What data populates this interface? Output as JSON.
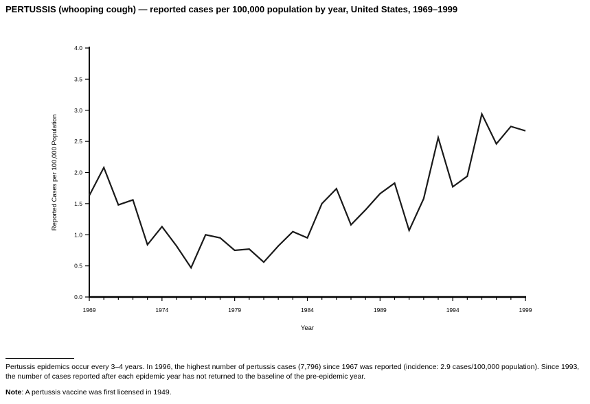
{
  "page": {
    "title": "PERTUSSIS (whooping cough) — reported cases per 100,000 population by year, United States, 1969–1999"
  },
  "chart_data": {
    "type": "line",
    "title": "PERTUSSIS (whooping cough) — reported cases per 100,000 population by year, United States, 1969–1999",
    "xlabel": "Year",
    "ylabel": "Reported Cases per 100,000 Population",
    "ylim": [
      0.0,
      4.0
    ],
    "ytick_step": 0.5,
    "xticks_labeled": [
      1969,
      1974,
      1979,
      1984,
      1989,
      1994,
      1999
    ],
    "grid": false,
    "legend": false,
    "line_color": "#1a1a1a",
    "x": [
      1969,
      1970,
      1971,
      1972,
      1973,
      1974,
      1975,
      1976,
      1977,
      1978,
      1979,
      1980,
      1981,
      1982,
      1983,
      1984,
      1985,
      1986,
      1987,
      1988,
      1989,
      1990,
      1991,
      1992,
      1993,
      1994,
      1995,
      1996,
      1997,
      1998,
      1999
    ],
    "values": [
      1.63,
      2.08,
      1.48,
      1.56,
      0.84,
      1.13,
      0.82,
      0.47,
      1.0,
      0.95,
      0.75,
      0.77,
      0.56,
      0.82,
      1.05,
      0.95,
      1.5,
      1.74,
      1.16,
      1.4,
      1.66,
      1.83,
      1.07,
      1.58,
      2.56,
      1.77,
      1.94,
      2.94,
      2.46,
      2.74,
      2.67
    ]
  },
  "footnotes": {
    "footnote": "Pertussis epidemics occur every 3–4 years. In 1996, the highest number of pertussis cases (7,796) since 1967 was reported (incidence: 2.9 cases/100,000 population). Since 1993, the number of cases reported after each epidemic year has not returned to the baseline of the pre-epidemic year.",
    "note_label": "Note",
    "note_text": ": A pertussis vaccine was first licensed in 1949."
  }
}
